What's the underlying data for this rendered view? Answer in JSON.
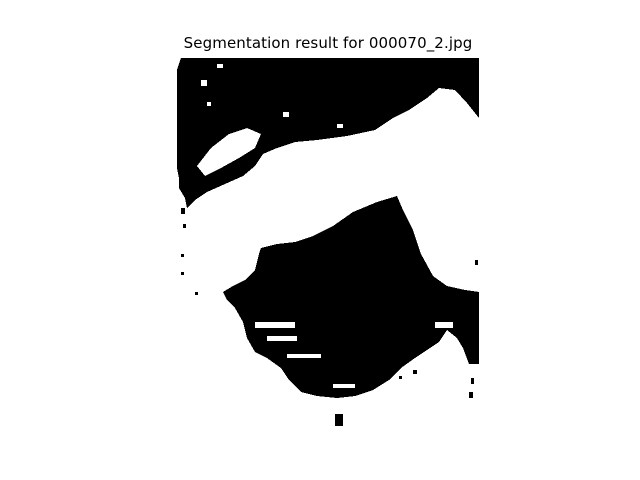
{
  "figure": {
    "title": "Segmentation result for 000070_2.jpg"
  },
  "colors": {
    "background": "#ffffff",
    "foreground_mask": "#000000",
    "background_mask": "#ffffff"
  }
}
